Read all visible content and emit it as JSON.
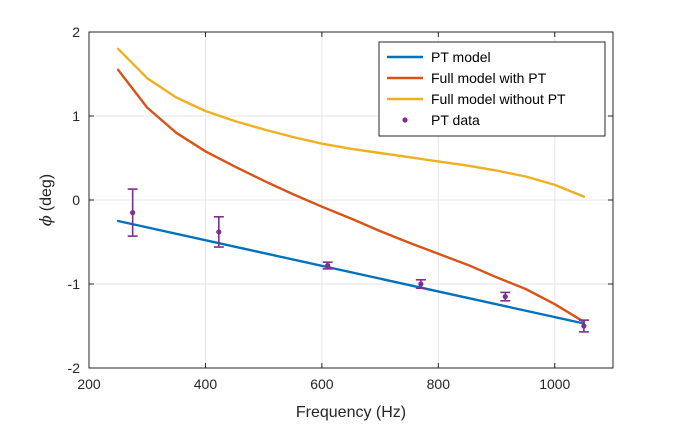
{
  "chart_data": {
    "type": "line",
    "xlabel": "Frequency (Hz)",
    "ylabel": "(deg)",
    "ylabel_symbol": "ϕ",
    "xlim": [
      200,
      1100
    ],
    "ylim": [
      -2,
      2
    ],
    "xticks": [
      200,
      400,
      600,
      800,
      1000
    ],
    "yticks": [
      -2,
      -1,
      0,
      1,
      2
    ],
    "xtick_labels": [
      "200",
      "400",
      "600",
      "800",
      "1000"
    ],
    "ytick_labels": [
      "-2",
      "-1",
      "0",
      "1",
      "2"
    ],
    "grid": true,
    "legend_position": "top-right",
    "series": [
      {
        "name": "PT model",
        "kind": "line",
        "color": "#0072BD",
        "x": [
          250,
          1050
        ],
        "y": [
          -0.25,
          -1.47
        ]
      },
      {
        "name": "Full model with PT",
        "kind": "line",
        "color": "#D95319",
        "x": [
          250,
          300,
          350,
          400,
          450,
          500,
          550,
          600,
          650,
          700,
          750,
          800,
          850,
          900,
          950,
          1000,
          1050
        ],
        "y": [
          1.55,
          1.1,
          0.8,
          0.58,
          0.4,
          0.23,
          0.07,
          -0.08,
          -0.22,
          -0.37,
          -0.51,
          -0.64,
          -0.77,
          -0.92,
          -1.06,
          -1.24,
          -1.45
        ]
      },
      {
        "name": "Full model without PT",
        "kind": "line",
        "color": "#EDB120",
        "x": [
          250,
          300,
          350,
          400,
          450,
          500,
          550,
          600,
          650,
          700,
          750,
          800,
          850,
          900,
          950,
          1000,
          1050
        ],
        "y": [
          1.8,
          1.45,
          1.22,
          1.06,
          0.94,
          0.84,
          0.75,
          0.67,
          0.61,
          0.56,
          0.51,
          0.46,
          0.41,
          0.35,
          0.28,
          0.18,
          0.04
        ]
      },
      {
        "name": "PT data",
        "kind": "errorbar",
        "color": "#7E2F8E",
        "x": [
          275,
          423,
          610,
          770,
          915,
          1050
        ],
        "y": [
          -0.15,
          -0.38,
          -0.78,
          -1.0,
          -1.15,
          -1.5
        ],
        "err": [
          0.28,
          0.18,
          0.04,
          0.05,
          0.05,
          0.07
        ]
      }
    ]
  }
}
